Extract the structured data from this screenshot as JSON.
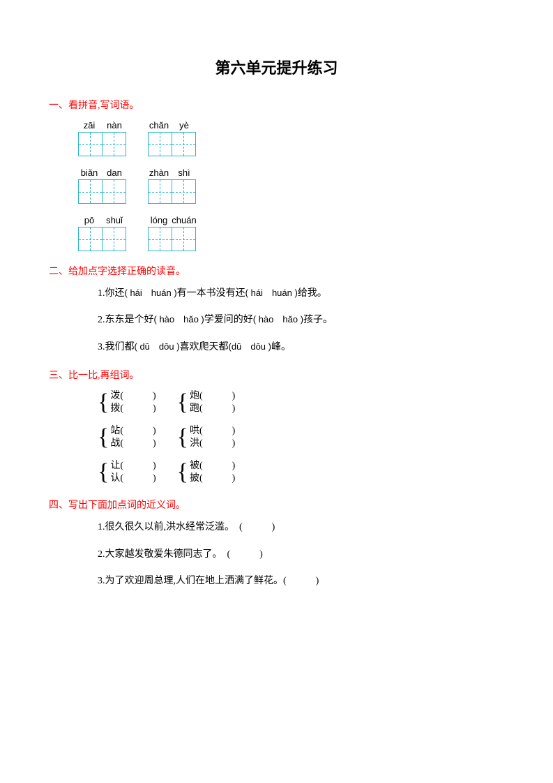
{
  "title": "第六单元提升练习",
  "colors": {
    "heading": "#ff0000",
    "grid_border": "#2bb3c8",
    "text": "#000000",
    "background": "#ffffff"
  },
  "sections": {
    "s1": {
      "header": "一、看拼音,写词语。",
      "rows": [
        {
          "left": [
            "zāi",
            "nàn"
          ],
          "right": [
            "chǎn",
            "yè"
          ]
        },
        {
          "left": [
            "biǎn",
            "dan"
          ],
          "right": [
            "zhàn",
            "shì"
          ]
        },
        {
          "left": [
            "pō",
            "shuǐ"
          ],
          "right": [
            "lóng",
            "chuán"
          ]
        }
      ]
    },
    "s2": {
      "header": "二、给加点字选择正确的读音。",
      "items": [
        {
          "num": "1.",
          "pre": "你还",
          "opt1": "( hái　huán )",
          "mid": "有一本书没有还",
          "opt2": "( hái　huán )",
          "post": "给我。"
        },
        {
          "num": "2.",
          "pre": "东东是个好",
          "opt1": "( hào　hǎo )",
          "mid": "学爱问的好",
          "opt2": "( hào　hǎo )",
          "post": "孩子。"
        },
        {
          "num": "3.",
          "pre": "我们都",
          "opt1": "( dū　dōu )",
          "mid": "喜欢爬天都",
          "opt2": "(dū　dōu )",
          "post": "峰。"
        }
      ]
    },
    "s3": {
      "header": "三、比一比,再组词。",
      "groups": [
        [
          {
            "top": "泼(　　　)",
            "bot": "拨(　　　)"
          },
          {
            "top": "炮(　　　)",
            "bot": "跑(　　　)"
          }
        ],
        [
          {
            "top": "站(　　　)",
            "bot": "战(　　　)"
          },
          {
            "top": "哄(　　　)",
            "bot": "洪(　　　)"
          }
        ],
        [
          {
            "top": "让(　　　)",
            "bot": "认(　　　)"
          },
          {
            "top": "被(　　　)",
            "bot": "披(　　　)"
          }
        ]
      ]
    },
    "s4": {
      "header": "四、写出下面加点词的近义词。",
      "items": [
        {
          "num": "1.",
          "text": "很久很久以前,洪水经常泛滥。　(　　　)"
        },
        {
          "num": "2.",
          "text": "大家越发敬爱朱德同志了。　(　　　)"
        },
        {
          "num": "3.",
          "text": "为了欢迎周总理,人们在地上洒满了鲜花。(　　　)"
        }
      ]
    }
  }
}
